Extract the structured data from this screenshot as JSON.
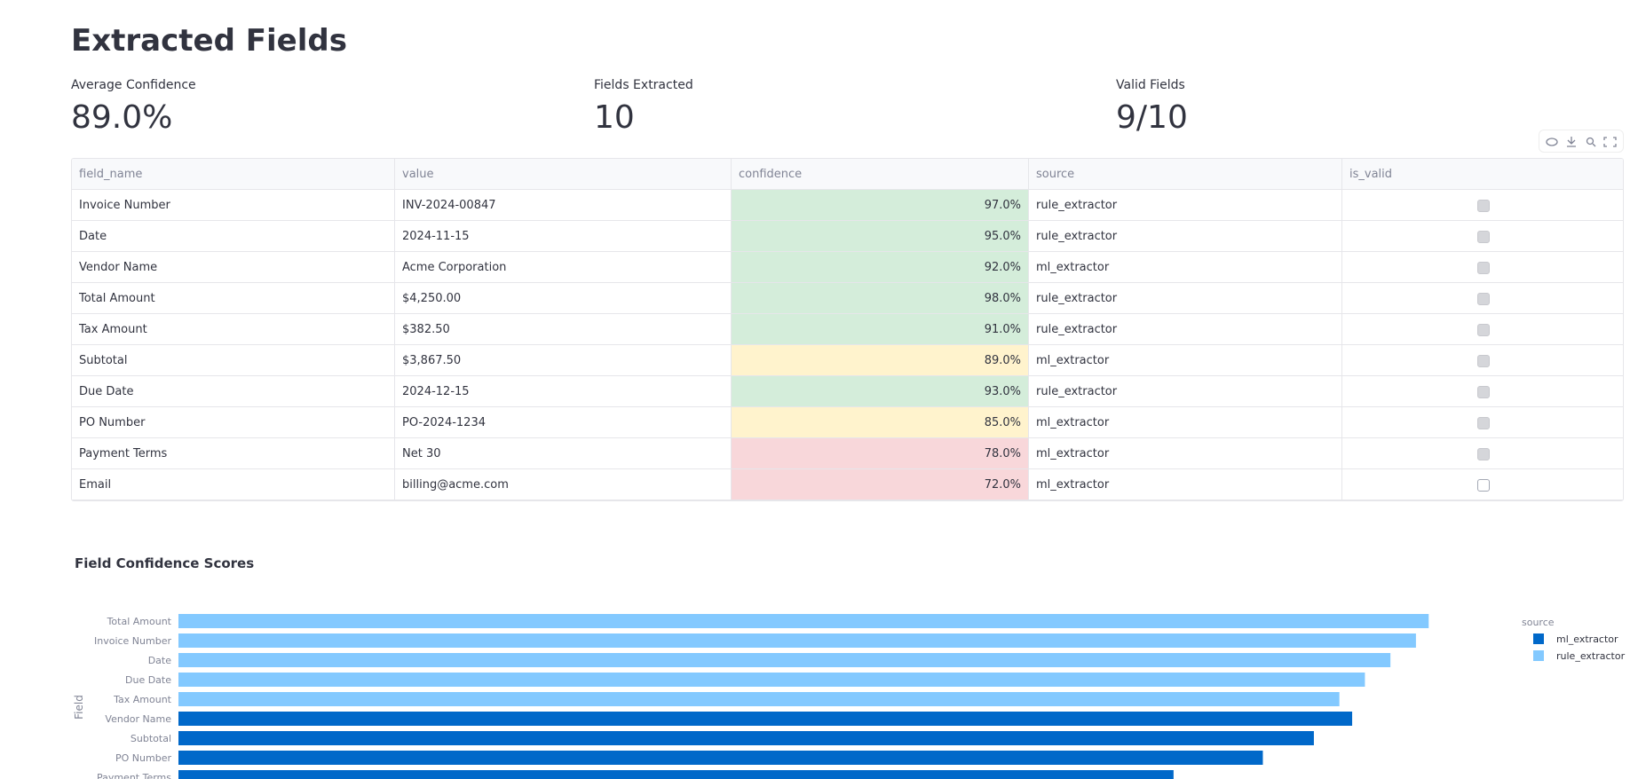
{
  "header": {
    "title": "Extracted Fields"
  },
  "metrics": [
    {
      "label": "Average Confidence",
      "value": "89.0%"
    },
    {
      "label": "Fields Extracted",
      "value": "10"
    },
    {
      "label": "Valid Fields",
      "value": "9/10"
    }
  ],
  "table": {
    "columns": [
      "field_name",
      "value",
      "confidence",
      "source",
      "is_valid"
    ],
    "rows": [
      [
        "Invoice Number",
        "INV-2024-00847",
        "97.0%",
        "rule_extractor",
        true
      ],
      [
        "Date",
        "2024-11-15",
        "95.0%",
        "rule_extractor",
        true
      ],
      [
        "Vendor Name",
        "Acme Corporation",
        "92.0%",
        "ml_extractor",
        true
      ],
      [
        "Total Amount",
        "$4,250.00",
        "98.0%",
        "rule_extractor",
        true
      ],
      [
        "Tax Amount",
        "$382.50",
        "91.0%",
        "rule_extractor",
        true
      ],
      [
        "Subtotal",
        "$3,867.50",
        "89.0%",
        "ml_extractor",
        true
      ],
      [
        "Due Date",
        "2024-12-15",
        "93.0%",
        "rule_extractor",
        true
      ],
      [
        "PO Number",
        "PO-2024-1234",
        "85.0%",
        "ml_extractor",
        true
      ],
      [
        "Payment Terms",
        "Net 30",
        "78.0%",
        "ml_extractor",
        true
      ],
      [
        "Email",
        "billing@acme.com",
        "72.0%",
        "ml_extractor",
        false
      ]
    ],
    "confidence_colors": [
      "#d4edda",
      "#d4edda",
      "#d4edda",
      "#d4edda",
      "#d4edda",
      "#fff3cd",
      "#d4edda",
      "#fff3cd",
      "#f8d7da",
      "#f8d7da"
    ]
  },
  "chart": {
    "type": "bar",
    "title": "Field Confidence Scores",
    "y_label": "Field",
    "legend_title": "source",
    "categories": [
      "Total Amount",
      "Invoice Number",
      "Date",
      "Due Date",
      "Tax Amount",
      "Vendor Name",
      "Subtotal",
      "PO Number",
      "Payment Terms"
    ],
    "series": [
      {
        "name": "ml_extractor",
        "color": "#0068c9",
        "values": [
          null,
          null,
          null,
          null,
          null,
          92,
          89,
          85,
          78
        ]
      },
      {
        "name": "rule_extractor",
        "color": "#83c9ff",
        "values": [
          98,
          97,
          95,
          93,
          91,
          null,
          null,
          null,
          null
        ]
      }
    ],
    "xlim": [
      0,
      100
    ]
  }
}
